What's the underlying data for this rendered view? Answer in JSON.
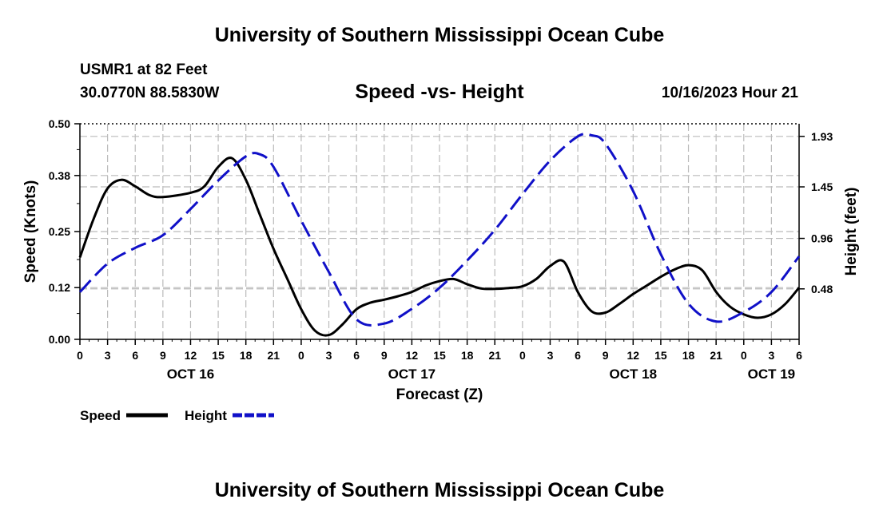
{
  "header": {
    "title": "University of Southern Mississippi Ocean Cube",
    "station": "USMR1 at 82 Feet",
    "coords": "30.0770N  88.5830W",
    "subtitle": "Speed -vs- Height",
    "datetime": "10/16/2023 Hour 21"
  },
  "footer": {
    "title": "University of Southern Mississippi Ocean Cube"
  },
  "chart_data": {
    "type": "line",
    "title": "Speed -vs- Height",
    "xlabel": "Forecast (Z)",
    "ylabel": "Speed (Knots)",
    "y2label": "Height (feet)",
    "xlim": [
      0,
      78
    ],
    "ylim": [
      0,
      0.5
    ],
    "y2lim": [
      0,
      2.05
    ],
    "x_ticks": [
      0,
      3,
      6,
      9,
      12,
      15,
      18,
      21,
      24,
      27,
      30,
      33,
      36,
      39,
      42,
      45,
      48,
      51,
      54,
      57,
      60,
      63,
      66,
      69,
      72,
      75,
      78
    ],
    "x_tick_labels": [
      "0",
      "3",
      "6",
      "9",
      "12",
      "15",
      "18",
      "21",
      "0",
      "3",
      "6",
      "9",
      "12",
      "15",
      "18",
      "21",
      "0",
      "3",
      "6",
      "9",
      "12",
      "15",
      "18",
      "21",
      "0",
      "3",
      "6"
    ],
    "day_labels": [
      {
        "x": 12,
        "label": "OCT 16"
      },
      {
        "x": 36,
        "label": "OCT 17"
      },
      {
        "x": 60,
        "label": "OCT 18"
      },
      {
        "x": 75,
        "label": "OCT 19"
      }
    ],
    "y_ticks": [
      0.0,
      0.12,
      0.25,
      0.38,
      0.5
    ],
    "y_tick_labels": [
      "0.00",
      "0.12",
      "0.25",
      "0.38",
      "0.50"
    ],
    "y2_ticks": [
      0.48,
      0.96,
      1.45,
      1.93
    ],
    "y2_tick_labels": [
      "0.48",
      "0.96",
      "1.45",
      "1.93"
    ],
    "legend": [
      {
        "label": "Speed",
        "color": "#000000",
        "style": "solid"
      },
      {
        "label": "Height",
        "color": "#1010c8",
        "style": "dashed"
      }
    ],
    "series": [
      {
        "name": "Speed",
        "axis": "left",
        "color": "#000000",
        "style": "solid",
        "x": [
          0,
          1.5,
          3,
          4.5,
          6,
          7.5,
          9,
          12,
          13.5,
          15,
          16.5,
          18,
          19.5,
          21,
          22.5,
          24,
          25.5,
          27,
          28.5,
          30,
          31.5,
          33,
          34.5,
          36,
          37.5,
          39,
          40.5,
          42,
          43.5,
          45,
          46.5,
          48,
          49.5,
          51,
          52.5,
          54,
          55.5,
          57,
          58.5,
          60,
          61.5,
          63,
          64.5,
          66,
          67.5,
          69,
          70.5,
          72,
          73.5,
          75,
          76.5,
          78
        ],
        "values": [
          0.19,
          0.28,
          0.35,
          0.37,
          0.355,
          0.335,
          0.33,
          0.34,
          0.355,
          0.4,
          0.42,
          0.37,
          0.29,
          0.21,
          0.14,
          0.07,
          0.02,
          0.01,
          0.035,
          0.07,
          0.085,
          0.092,
          0.1,
          0.11,
          0.125,
          0.135,
          0.14,
          0.128,
          0.118,
          0.117,
          0.119,
          0.123,
          0.14,
          0.17,
          0.18,
          0.11,
          0.065,
          0.062,
          0.082,
          0.105,
          0.125,
          0.145,
          0.162,
          0.172,
          0.16,
          0.11,
          0.076,
          0.058,
          0.05,
          0.058,
          0.082,
          0.12
        ]
      },
      {
        "name": "Height",
        "axis": "right",
        "color": "#1010c8",
        "style": "dashed",
        "x": [
          0,
          3,
          6,
          9,
          12,
          15,
          18,
          19.5,
          21,
          24,
          27,
          30,
          33,
          36,
          39,
          42,
          45,
          48,
          51,
          54,
          55.5,
          57,
          60,
          63,
          66,
          69,
          72,
          75,
          78
        ],
        "values": [
          0.45,
          0.72,
          0.87,
          0.99,
          1.24,
          1.51,
          1.74,
          1.76,
          1.64,
          1.13,
          0.64,
          0.19,
          0.15,
          0.29,
          0.49,
          0.75,
          1.04,
          1.38,
          1.7,
          1.93,
          1.94,
          1.86,
          1.41,
          0.81,
          0.34,
          0.17,
          0.26,
          0.45,
          0.79
        ]
      }
    ]
  }
}
